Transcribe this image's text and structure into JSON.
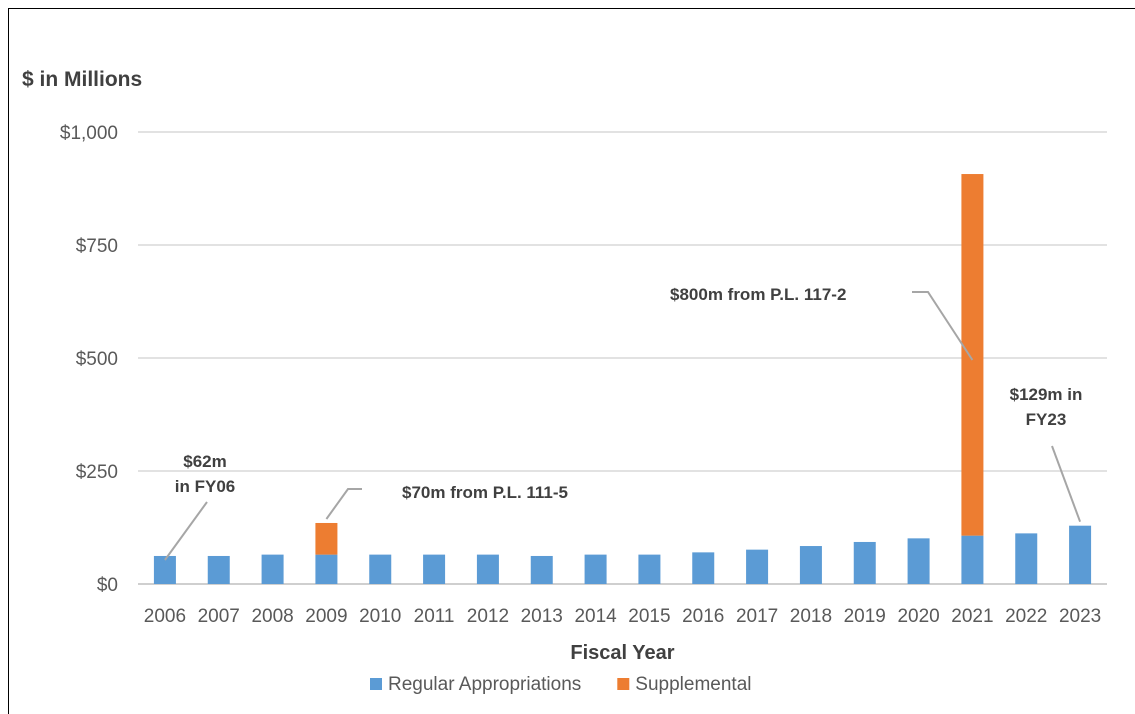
{
  "chart_data": {
    "type": "bar",
    "stacked": true,
    "y_unit_label": "$ in Millions",
    "xlabel": "Fiscal Year",
    "ylabel": "",
    "ylim": [
      0,
      1000
    ],
    "y_ticks": [
      "$0",
      "$250",
      "$500",
      "$750",
      "$1,000"
    ],
    "y_tick_values": [
      0,
      250,
      500,
      750,
      1000
    ],
    "grid": true,
    "legend_position": "bottom",
    "categories": [
      "2006",
      "2007",
      "2008",
      "2009",
      "2010",
      "2011",
      "2012",
      "2013",
      "2014",
      "2015",
      "2016",
      "2017",
      "2018",
      "2019",
      "2020",
      "2021",
      "2022",
      "2023"
    ],
    "series": [
      {
        "name": "Regular Appropriations",
        "color": "#5b9bd5",
        "values": [
          62,
          62,
          65,
          65,
          65,
          65,
          65,
          62,
          65,
          65,
          70,
          76,
          84,
          93,
          101,
          107,
          112,
          129
        ]
      },
      {
        "name": "Supplemental",
        "color": "#ed7d31",
        "values": [
          0,
          0,
          0,
          70,
          0,
          0,
          0,
          0,
          0,
          0,
          0,
          0,
          0,
          0,
          0,
          800,
          0,
          0
        ]
      }
    ],
    "annotations": [
      {
        "lines": [
          "$62m",
          "in FY06"
        ],
        "category": "2006"
      },
      {
        "lines": [
          "$70m from P.L. 111-5"
        ],
        "category": "2009"
      },
      {
        "lines": [
          "$800m from P.L. 117-2"
        ],
        "category": "2021"
      },
      {
        "lines": [
          "$129m in",
          "FY23"
        ],
        "category": "2023"
      }
    ]
  }
}
